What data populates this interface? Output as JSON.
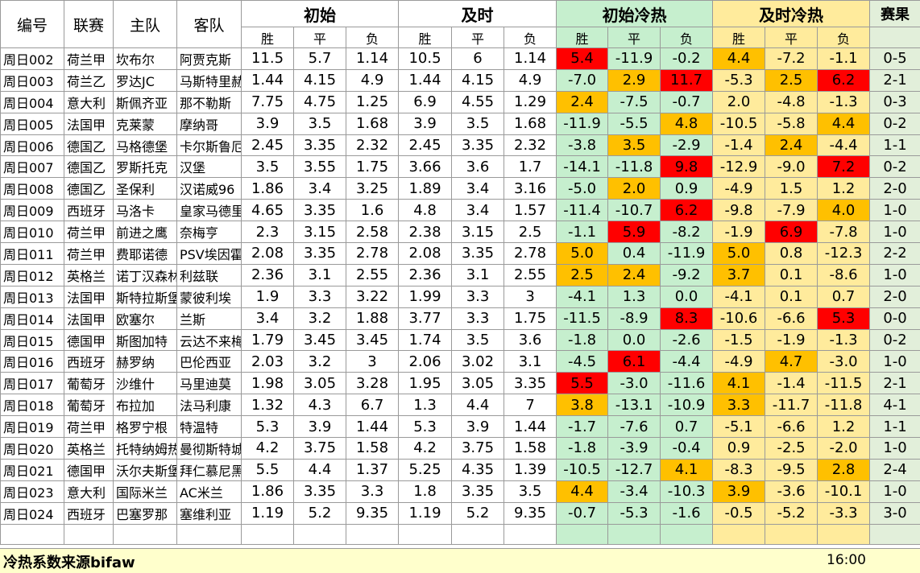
{
  "header": {
    "code": "编号",
    "league": "联赛",
    "home": "主队",
    "away": "客队",
    "initial": "初始",
    "live": "及时",
    "initial_hotcold": "初始冷热",
    "live_hotcold": "及时冷热",
    "result": "赛果",
    "win": "胜",
    "draw": "平",
    "loss": "负"
  },
  "colors": {
    "red": "#ff0000",
    "orange": "#ffc000",
    "green_fill": "#c6efce",
    "yellow_fill": "#ffeb9c",
    "result_fill": "#e2efda"
  },
  "rows": [
    {
      "code": "周日002",
      "league": "荷兰甲",
      "home": "坎布尔",
      "away": "阿贾克斯",
      "i": [
        "11.5",
        "5.7",
        "1.14"
      ],
      "n": [
        "10.5",
        "6",
        "1.14"
      ],
      "ih": [
        "5.4",
        "-11.9",
        "-0.2"
      ],
      "ihc": [
        "r",
        "",
        ""
      ],
      "nh": [
        "4.4",
        "-7.2",
        "-1.1"
      ],
      "nhc": [
        "o",
        "",
        ""
      ],
      "result": "0-5"
    },
    {
      "code": "周日003",
      "league": "荷兰乙",
      "home": "罗达JC",
      "away": "马斯特里赫",
      "i": [
        "1.44",
        "4.15",
        "4.9"
      ],
      "n": [
        "1.44",
        "4.15",
        "4.9"
      ],
      "ih": [
        "-7.0",
        "2.9",
        "11.7"
      ],
      "ihc": [
        "",
        "o",
        "r"
      ],
      "nh": [
        "-5.3",
        "2.5",
        "6.2"
      ],
      "nhc": [
        "",
        "o",
        "r"
      ],
      "result": "2-1"
    },
    {
      "code": "周日004",
      "league": "意大利",
      "home": "斯佩齐亚",
      "away": "那不勒斯",
      "i": [
        "7.75",
        "4.75",
        "1.25"
      ],
      "n": [
        "6.9",
        "4.55",
        "1.29"
      ],
      "ih": [
        "2.4",
        "-7.5",
        "-0.7"
      ],
      "ihc": [
        "o",
        "",
        ""
      ],
      "nh": [
        "2.0",
        "-4.8",
        "-1.3"
      ],
      "nhc": [
        "",
        "",
        ""
      ],
      "result": "0-3"
    },
    {
      "code": "周日005",
      "league": "法国甲",
      "home": "克莱蒙",
      "away": "摩纳哥",
      "i": [
        "3.9",
        "3.5",
        "1.68"
      ],
      "n": [
        "3.9",
        "3.5",
        "1.68"
      ],
      "ih": [
        "-11.9",
        "-5.5",
        "4.8"
      ],
      "ihc": [
        "",
        "",
        "o"
      ],
      "nh": [
        "-10.5",
        "-5.8",
        "4.4"
      ],
      "nhc": [
        "",
        "",
        "o"
      ],
      "result": "0-2"
    },
    {
      "code": "周日006",
      "league": "德国乙",
      "home": "马格德堡",
      "away": "卡尔斯鲁厄",
      "i": [
        "2.45",
        "3.35",
        "2.32"
      ],
      "n": [
        "2.45",
        "3.35",
        "2.32"
      ],
      "ih": [
        "-3.8",
        "3.5",
        "-2.9"
      ],
      "ihc": [
        "",
        "o",
        ""
      ],
      "nh": [
        "-1.4",
        "2.4",
        "-4.4"
      ],
      "nhc": [
        "",
        "o",
        ""
      ],
      "result": "1-1"
    },
    {
      "code": "周日007",
      "league": "德国乙",
      "home": "罗斯托克",
      "away": "汉堡",
      "i": [
        "3.5",
        "3.55",
        "1.75"
      ],
      "n": [
        "3.66",
        "3.6",
        "1.7"
      ],
      "ih": [
        "-14.1",
        "-11.8",
        "9.8"
      ],
      "ihc": [
        "",
        "",
        "r"
      ],
      "nh": [
        "-12.9",
        "-9.0",
        "7.2"
      ],
      "nhc": [
        "",
        "",
        "r"
      ],
      "result": "0-2"
    },
    {
      "code": "周日008",
      "league": "德国乙",
      "home": "圣保利",
      "away": "汉诺威96",
      "i": [
        "1.86",
        "3.4",
        "3.25"
      ],
      "n": [
        "1.89",
        "3.4",
        "3.16"
      ],
      "ih": [
        "-5.0",
        "2.0",
        "0.9"
      ],
      "ihc": [
        "",
        "o",
        ""
      ],
      "nh": [
        "-4.9",
        "1.5",
        "1.2"
      ],
      "nhc": [
        "",
        "",
        ""
      ],
      "result": "2-0"
    },
    {
      "code": "周日009",
      "league": "西班牙",
      "home": "马洛卡",
      "away": "皇家马德里",
      "i": [
        "4.65",
        "3.35",
        "1.6"
      ],
      "n": [
        "4.8",
        "3.4",
        "1.57"
      ],
      "ih": [
        "-11.4",
        "-10.7",
        "6.2"
      ],
      "ihc": [
        "",
        "",
        "r"
      ],
      "nh": [
        "-9.8",
        "-7.9",
        "4.0"
      ],
      "nhc": [
        "",
        "",
        "o"
      ],
      "result": "1-0"
    },
    {
      "code": "周日010",
      "league": "荷兰甲",
      "home": "前进之鹰",
      "away": "奈梅亨",
      "i": [
        "2.3",
        "3.15",
        "2.58"
      ],
      "n": [
        "2.38",
        "3.15",
        "2.5"
      ],
      "ih": [
        "-1.1",
        "5.9",
        "-8.2"
      ],
      "ihc": [
        "",
        "r",
        ""
      ],
      "nh": [
        "-1.9",
        "6.9",
        "-7.8"
      ],
      "nhc": [
        "",
        "r",
        ""
      ],
      "result": "1-0"
    },
    {
      "code": "周日011",
      "league": "荷兰甲",
      "home": "费耶诺德",
      "away": "PSV埃因霍温",
      "i": [
        "2.08",
        "3.35",
        "2.78"
      ],
      "n": [
        "2.08",
        "3.35",
        "2.78"
      ],
      "ih": [
        "5.0",
        "0.4",
        "-11.9"
      ],
      "ihc": [
        "o",
        "",
        ""
      ],
      "nh": [
        "5.0",
        "0.8",
        "-12.3"
      ],
      "nhc": [
        "o",
        "",
        ""
      ],
      "result": "2-2"
    },
    {
      "code": "周日012",
      "league": "英格兰",
      "home": "诺丁汉森林",
      "away": "利兹联",
      "i": [
        "2.36",
        "3.1",
        "2.55"
      ],
      "n": [
        "2.36",
        "3.1",
        "2.55"
      ],
      "ih": [
        "2.5",
        "2.4",
        "-9.2"
      ],
      "ihc": [
        "o",
        "o",
        ""
      ],
      "nh": [
        "3.7",
        "0.1",
        "-8.6"
      ],
      "nhc": [
        "o",
        "",
        ""
      ],
      "result": "1-0"
    },
    {
      "code": "周日013",
      "league": "法国甲",
      "home": "斯特拉斯堡",
      "away": "蒙彼利埃",
      "i": [
        "1.9",
        "3.3",
        "3.22"
      ],
      "n": [
        "1.99",
        "3.3",
        "3"
      ],
      "ih": [
        "-4.1",
        "1.3",
        "0.0"
      ],
      "ihc": [
        "",
        "",
        ""
      ],
      "nh": [
        "-4.1",
        "0.1",
        "0.7"
      ],
      "nhc": [
        "",
        "",
        ""
      ],
      "result": "2-0"
    },
    {
      "code": "周日014",
      "league": "法国甲",
      "home": "欧塞尔",
      "away": "兰斯",
      "i": [
        "3.4",
        "3.2",
        "1.88"
      ],
      "n": [
        "3.77",
        "3.3",
        "1.75"
      ],
      "ih": [
        "-11.5",
        "-8.9",
        "8.3"
      ],
      "ihc": [
        "",
        "",
        "r"
      ],
      "nh": [
        "-10.6",
        "-6.6",
        "5.3"
      ],
      "nhc": [
        "",
        "",
        "r"
      ],
      "result": "0-0"
    },
    {
      "code": "周日015",
      "league": "德国甲",
      "home": "斯图加特",
      "away": "云达不来梅",
      "i": [
        "1.79",
        "3.45",
        "3.45"
      ],
      "n": [
        "1.74",
        "3.5",
        "3.6"
      ],
      "ih": [
        "-1.8",
        "0.0",
        "-2.6"
      ],
      "ihc": [
        "",
        "",
        ""
      ],
      "nh": [
        "-1.5",
        "-1.9",
        "-1.3"
      ],
      "nhc": [
        "",
        "",
        ""
      ],
      "result": "0-2"
    },
    {
      "code": "周日016",
      "league": "西班牙",
      "home": "赫罗纳",
      "away": "巴伦西亚",
      "i": [
        "2.03",
        "3.2",
        "3"
      ],
      "n": [
        "2.06",
        "3.02",
        "3.1"
      ],
      "ih": [
        "-4.5",
        "6.1",
        "-4.4"
      ],
      "ihc": [
        "",
        "r",
        ""
      ],
      "nh": [
        "-4.9",
        "4.7",
        "-3.0"
      ],
      "nhc": [
        "",
        "o",
        ""
      ],
      "result": "1-0"
    },
    {
      "code": "周日017",
      "league": "葡萄牙",
      "home": "沙维什",
      "away": "马里迪莫",
      "i": [
        "1.98",
        "3.05",
        "3.28"
      ],
      "n": [
        "1.95",
        "3.05",
        "3.35"
      ],
      "ih": [
        "5.5",
        "-3.0",
        "-11.6"
      ],
      "ihc": [
        "r",
        "",
        ""
      ],
      "nh": [
        "4.1",
        "-1.4",
        "-11.5"
      ],
      "nhc": [
        "o",
        "",
        ""
      ],
      "result": "2-1"
    },
    {
      "code": "周日018",
      "league": "葡萄牙",
      "home": "布拉加",
      "away": "法马利康",
      "i": [
        "1.32",
        "4.3",
        "6.7"
      ],
      "n": [
        "1.3",
        "4.4",
        "7"
      ],
      "ih": [
        "3.8",
        "-13.1",
        "-10.9"
      ],
      "ihc": [
        "o",
        "",
        ""
      ],
      "nh": [
        "3.3",
        "-11.7",
        "-11.8"
      ],
      "nhc": [
        "o",
        "",
        ""
      ],
      "result": "4-1"
    },
    {
      "code": "周日019",
      "league": "荷兰甲",
      "home": "格罗宁根",
      "away": "特温特",
      "i": [
        "5.3",
        "3.9",
        "1.44"
      ],
      "n": [
        "5.3",
        "3.9",
        "1.44"
      ],
      "ih": [
        "-1.7",
        "-7.6",
        "0.7"
      ],
      "ihc": [
        "",
        "",
        ""
      ],
      "nh": [
        "-5.1",
        "-6.6",
        "1.2"
      ],
      "nhc": [
        "",
        "",
        ""
      ],
      "result": "1-1"
    },
    {
      "code": "周日020",
      "league": "英格兰",
      "home": "托特纳姆热刺",
      "away": "曼彻斯特城",
      "i": [
        "4.2",
        "3.75",
        "1.58"
      ],
      "n": [
        "4.2",
        "3.75",
        "1.58"
      ],
      "ih": [
        "-1.8",
        "-3.9",
        "-0.4"
      ],
      "ihc": [
        "",
        "",
        ""
      ],
      "nh": [
        "0.9",
        "-2.5",
        "-2.0"
      ],
      "nhc": [
        "",
        "",
        ""
      ],
      "result": "1-0"
    },
    {
      "code": "周日021",
      "league": "德国甲",
      "home": "沃尔夫斯堡",
      "away": "拜仁慕尼黑",
      "i": [
        "5.5",
        "4.4",
        "1.37"
      ],
      "n": [
        "5.25",
        "4.35",
        "1.39"
      ],
      "ih": [
        "-10.5",
        "-12.7",
        "4.1"
      ],
      "ihc": [
        "",
        "",
        "o"
      ],
      "nh": [
        "-8.3",
        "-9.5",
        "2.8"
      ],
      "nhc": [
        "",
        "",
        "o"
      ],
      "result": "2-4"
    },
    {
      "code": "周日023",
      "league": "意大利",
      "home": "国际米兰",
      "away": "AC米兰",
      "i": [
        "1.86",
        "3.35",
        "3.3"
      ],
      "n": [
        "1.8",
        "3.35",
        "3.5"
      ],
      "ih": [
        "4.4",
        "-3.4",
        "-10.3"
      ],
      "ihc": [
        "o",
        "",
        ""
      ],
      "nh": [
        "3.9",
        "-3.6",
        "-10.1"
      ],
      "nhc": [
        "o",
        "",
        ""
      ],
      "result": "1-0"
    },
    {
      "code": "周日024",
      "league": "西班牙",
      "home": "巴塞罗那",
      "away": "塞维利亚",
      "i": [
        "1.19",
        "5.2",
        "9.35"
      ],
      "n": [
        "1.19",
        "5.2",
        "9.35"
      ],
      "ih": [
        "-0.7",
        "-5.3",
        "-1.6"
      ],
      "ihc": [
        "",
        "",
        ""
      ],
      "nh": [
        "-0.5",
        "-5.2",
        "-3.3"
      ],
      "nhc": [
        "",
        "",
        ""
      ],
      "result": "3-0"
    }
  ],
  "footer": {
    "source": "冷热系数来源bifaw",
    "time": "16:00"
  }
}
